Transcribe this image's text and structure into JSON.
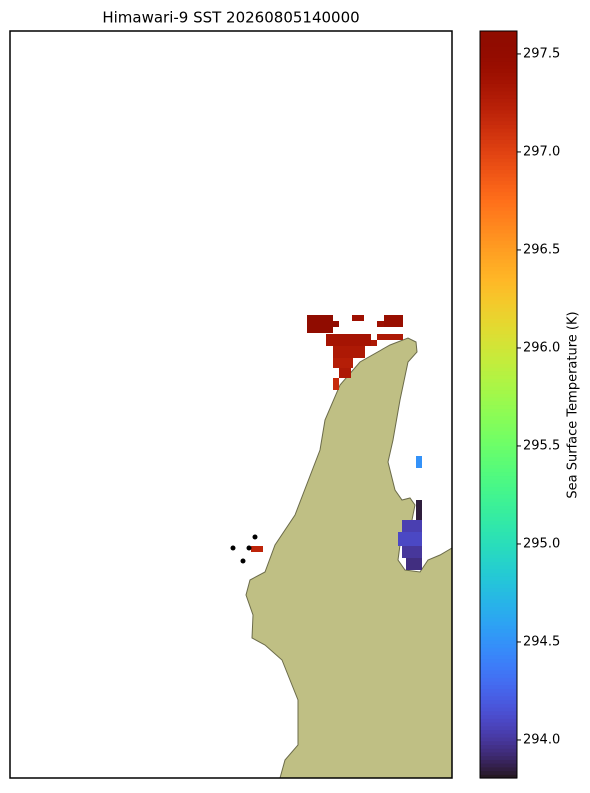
{
  "chart_data": {
    "type": "map",
    "title": "Himawari-9 SST 20260805140000",
    "colorbar_label": "Sea Surface Temperature (K)",
    "colormap": "turbo",
    "clim": [
      293.806,
      297.617
    ],
    "cticks": [
      {
        "value": 294,
        "label": "294.0"
      },
      {
        "value": 294.5,
        "label": "294.5"
      },
      {
        "value": 295,
        "label": "295.0"
      },
      {
        "value": 295.5,
        "label": "295.5"
      },
      {
        "value": 296,
        "label": "296.0"
      },
      {
        "value": 296.5,
        "label": "296.5"
      },
      {
        "value": 297,
        "label": "297.0"
      },
      {
        "value": 297.5,
        "label": "297.5"
      }
    ],
    "values": [
      297.6,
      297.55,
      297.4,
      297.45,
      297.4,
      297.35,
      297.3,
      297.3,
      297.3,
      297.25,
      297.3,
      297.15,
      297.2,
      294.5,
      293.85,
      294.05,
      294.1,
      294.0,
      293.95
    ]
  }
}
